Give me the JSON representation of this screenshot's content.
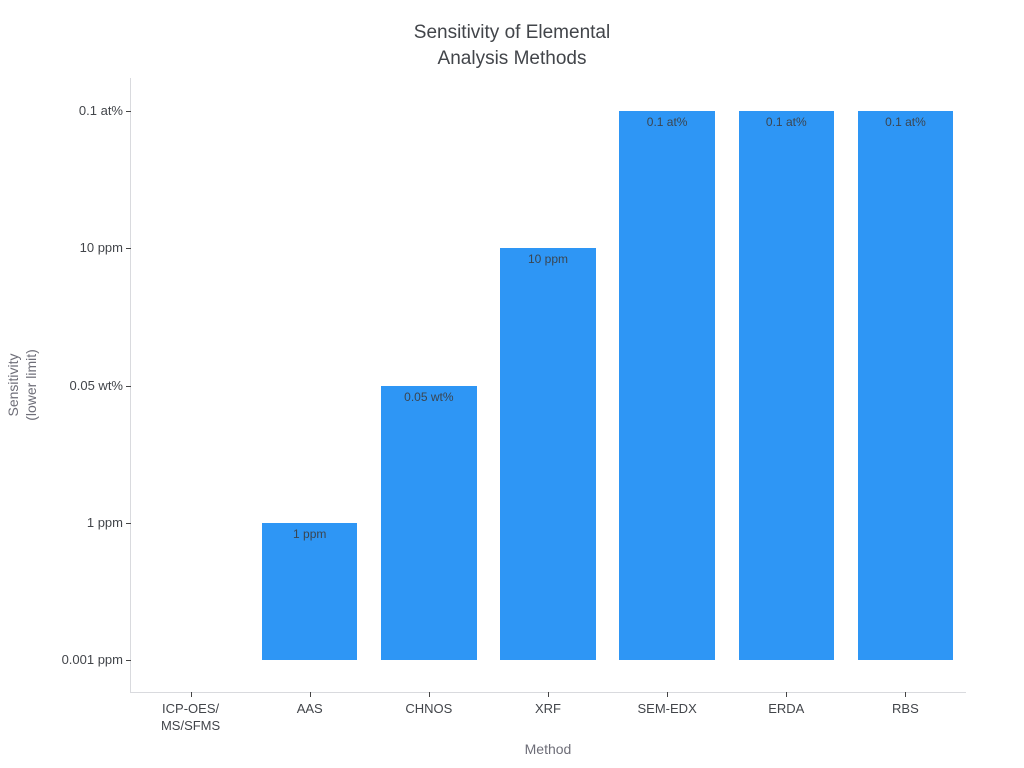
{
  "chart_data": {
    "type": "bar",
    "title": "Sensitivity of Elemental\nAnalysis Methods",
    "xlabel": "Method",
    "ylabel": "Sensitivity\n(lower limit)",
    "categories": [
      "ICP-OES/\nMS/SFMS",
      "AAS",
      "CHNOS",
      "XRF",
      "SEM-EDX",
      "ERDA",
      "RBS"
    ],
    "values": [
      0,
      1,
      2,
      3,
      4,
      4,
      4
    ],
    "value_labels": [
      "",
      "1 ppm",
      "0.05 wt%",
      "10 ppm",
      "0.1 at%",
      "0.1 at%",
      "0.1 at%"
    ],
    "yticks": {
      "values": [
        0,
        1,
        2,
        3,
        4
      ],
      "labels": [
        "0.001 ppm",
        "1 ppm",
        "0.05 wt%",
        "10 ppm",
        "0.1 at%"
      ]
    },
    "y_mapping_note": "ordinal y-axis: 0 = 0.001 ppm, 1 = 1 ppm, 2 = 0.05 wt%, 3 = 10 ppm, 4 = 0.1 at%",
    "ylim": [
      -0.23,
      4.24
    ],
    "grid": false,
    "legend_position": null,
    "bar_width_fraction": 0.8,
    "colors": {
      "background": "#ffffff",
      "bar": "#2E96F5",
      "axis_line": "#d9dade",
      "tick_mark": "#444444",
      "tick_label": "#42454a",
      "title": "#42454a",
      "axis_title": "#6e6e78",
      "bar_label": "#3b4550"
    }
  }
}
